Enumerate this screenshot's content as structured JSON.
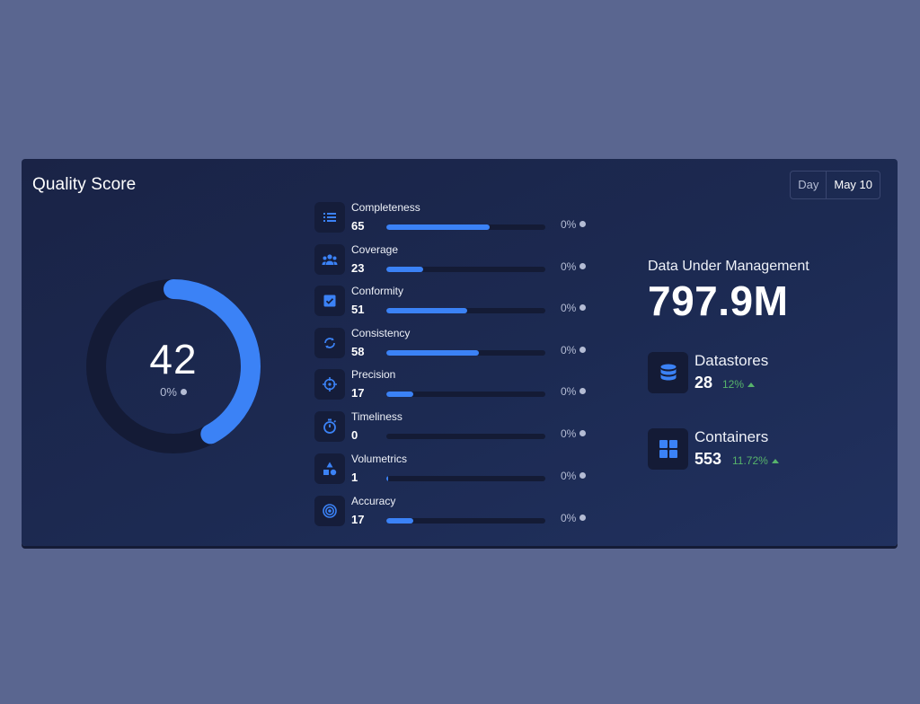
{
  "card": {
    "title": "Quality Score",
    "date_toggle": {
      "period": "Day",
      "date": "May 10"
    }
  },
  "gauge": {
    "value": "42",
    "change": "0%",
    "fraction": 0.42,
    "color": "#3b82f6",
    "track_color": "#141b36"
  },
  "metrics": [
    {
      "label": "Completeness",
      "value": "65",
      "change": "0%",
      "fill": 0.65,
      "icon": "list-icon"
    },
    {
      "label": "Coverage",
      "value": "23",
      "change": "0%",
      "fill": 0.23,
      "icon": "group-icon"
    },
    {
      "label": "Conformity",
      "value": "51",
      "change": "0%",
      "fill": 0.51,
      "icon": "checkbox-icon"
    },
    {
      "label": "Consistency",
      "value": "58",
      "change": "0%",
      "fill": 0.58,
      "icon": "sync-icon"
    },
    {
      "label": "Precision",
      "value": "17",
      "change": "0%",
      "fill": 0.17,
      "icon": "crosshair-icon"
    },
    {
      "label": "Timeliness",
      "value": "0",
      "change": "0%",
      "fill": 0.0,
      "icon": "stopwatch-icon"
    },
    {
      "label": "Volumetrics",
      "value": "1",
      "change": "0%",
      "fill": 0.01,
      "icon": "shapes-icon"
    },
    {
      "label": "Accuracy",
      "value": "17",
      "change": "0%",
      "fill": 0.17,
      "icon": "target-icon"
    }
  ],
  "data_under_management": {
    "label": "Data Under Management",
    "value": "797.9M"
  },
  "datastores": {
    "label": "Datastores",
    "value": "28",
    "change": "12%",
    "icon": "database-icon"
  },
  "containers": {
    "label": "Containers",
    "value": "553",
    "change": "11.72%",
    "icon": "grid-icon"
  },
  "colors": {
    "accent": "#3b82f6",
    "positive": "#57b36b",
    "muted": "#b4bcd4"
  }
}
